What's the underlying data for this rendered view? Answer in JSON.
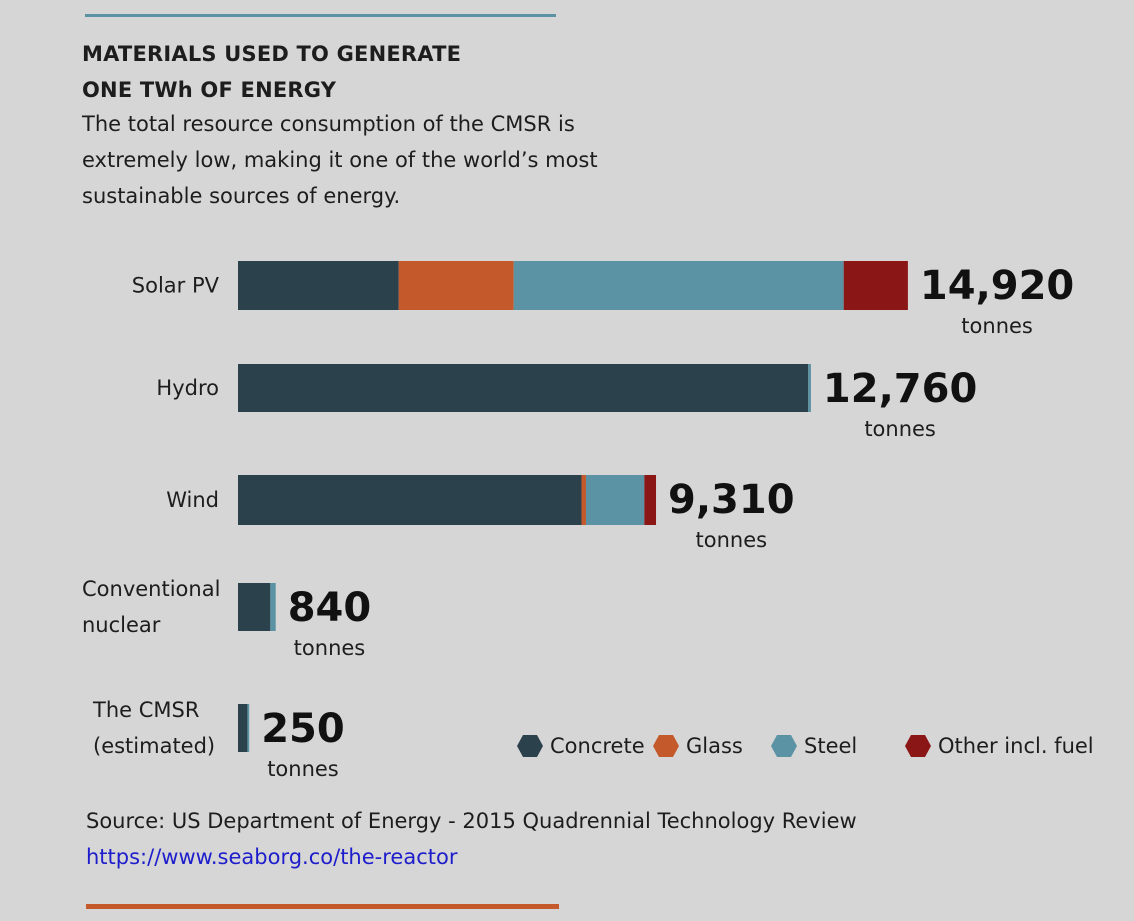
{
  "header": {
    "title_line1": "MATERIALS USED TO GENERATE",
    "title_line2": "ONE TWh OF ENERGY",
    "subtitle_line1": "The total resource consumption of the CMSR is",
    "subtitle_line2": "extremely low, making it one of the world’s most",
    "subtitle_line3": "sustainable sources of energy."
  },
  "colors": {
    "concrete": "#2b414c",
    "glass": "#c45a2b",
    "steel": "#5b93a4",
    "other": "#8b1616",
    "background": "#d6d6d6"
  },
  "chart_data": {
    "type": "bar",
    "orientation": "horizontal",
    "stacked": true,
    "unit": "tonnes",
    "categories": [
      [
        "Solar PV"
      ],
      [
        "Hydro"
      ],
      [
        "Wind"
      ],
      [
        "Conventional",
        "nuclear"
      ],
      [
        "The CMSR",
        "(estimated)"
      ]
    ],
    "series": [
      {
        "name": "Concrete",
        "color": "#2b414c",
        "values": [
          3580,
          12700,
          7650,
          720,
          210
        ]
      },
      {
        "name": "Glass",
        "color": "#c45a2b",
        "values": [
          2560,
          0,
          100,
          0,
          0
        ]
      },
      {
        "name": "Steel",
        "color": "#5b93a4",
        "values": [
          7350,
          60,
          1300,
          120,
          40
        ]
      },
      {
        "name": "Other incl. fuel",
        "color": "#8b1616",
        "values": [
          1430,
          0,
          260,
          0,
          0
        ]
      }
    ],
    "totals": [
      "14,920",
      "12,760",
      "9,310",
      "840",
      "250"
    ],
    "total_unit_label": "tonnes",
    "legend_position": "bottom-right",
    "grid": false
  },
  "legend": {
    "items": [
      {
        "label": "Concrete",
        "color": "#2b414c"
      },
      {
        "label": "Glass",
        "color": "#c45a2b"
      },
      {
        "label": "Steel",
        "color": "#5b93a4"
      },
      {
        "label": "Other incl. fuel",
        "color": "#8b1616"
      }
    ]
  },
  "footer": {
    "source": "Source: US Department of Energy - 2015 Quadrennial Technology Review",
    "link": "https://www.seaborg.co/the-reactor"
  }
}
